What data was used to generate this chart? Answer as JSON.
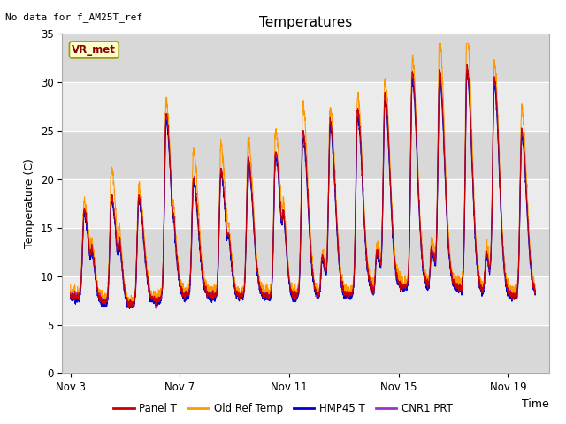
{
  "title": "Temperatures",
  "no_data_label": "No data for f_AM25T_ref",
  "annotation_label": "VR_met",
  "xlabel": "Time",
  "ylabel": "Temperature (C)",
  "ylim": [
    0,
    35
  ],
  "xlim_start": 2.7,
  "xlim_end": 20.5,
  "yticks": [
    0,
    5,
    10,
    15,
    20,
    25,
    30,
    35
  ],
  "xtick_labels": [
    "Nov 3",
    "Nov 7",
    "Nov 11",
    "Nov 15",
    "Nov 19"
  ],
  "xtick_positions": [
    3,
    7,
    11,
    15,
    19
  ],
  "line_colors": {
    "panel_t": "#cc0000",
    "old_ref": "#ff9900",
    "hmp45": "#0000cc",
    "cnr1": "#9933cc"
  },
  "legend_labels": [
    "Panel T",
    "Old Ref Temp",
    "HMP45 T",
    "CNR1 PRT"
  ],
  "plot_bg_color": "#ebebeb",
  "band_color": "#d8d8d8",
  "title_fontsize": 11,
  "label_fontsize": 9,
  "tick_fontsize": 8.5
}
